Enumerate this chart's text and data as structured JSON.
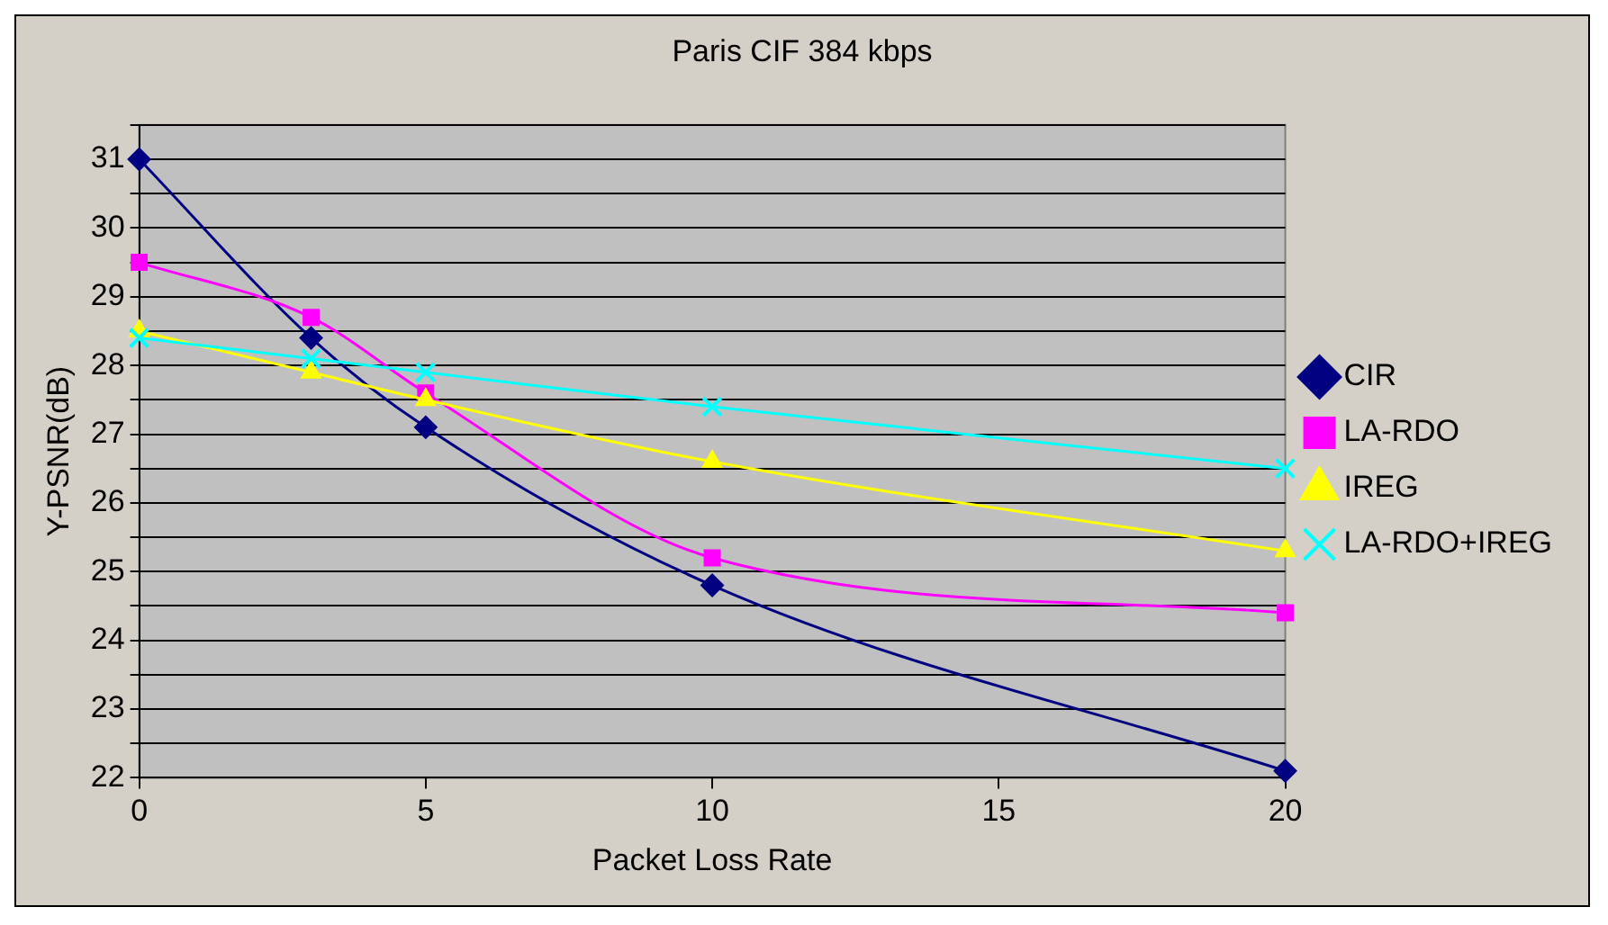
{
  "chart_data": {
    "type": "line",
    "title": "Paris CIF 384 kbps",
    "xlabel": "Packet Loss Rate",
    "ylabel": "Y-PSNR(dB)",
    "x": [
      0,
      3,
      5,
      10,
      20
    ],
    "series": [
      {
        "name": "CIR",
        "color": "#000080",
        "marker": "diamond",
        "values": [
          31,
          28.4,
          27.1,
          24.8,
          22.1
        ]
      },
      {
        "name": "LA-RDO",
        "color": "#ff00ff",
        "marker": "square",
        "values": [
          29.5,
          28.7,
          27.6,
          25.2,
          24.4
        ]
      },
      {
        "name": "IREG",
        "color": "#ffff00",
        "marker": "triangle",
        "values": [
          28.5,
          27.9,
          27.5,
          26.6,
          25.3
        ]
      },
      {
        "name": "LA-RDO+IREG",
        "color": "#00ffff",
        "marker": "cross",
        "values": [
          28.4,
          28.1,
          27.9,
          27.4,
          26.5
        ]
      }
    ],
    "xlim": [
      0,
      20
    ],
    "xticks": [
      0,
      5,
      10,
      15,
      20
    ],
    "ylim": [
      22,
      31.5
    ],
    "yticks": [
      22,
      {
        "value": 22.5,
        "label": null
      },
      23,
      {
        "value": 23.5,
        "label": null
      },
      24,
      {
        "value": 24.5,
        "label": null
      },
      25,
      {
        "value": 25.5,
        "label": null
      },
      26,
      {
        "value": 26.5,
        "label": null
      },
      27,
      {
        "value": 27.5,
        "label": null
      },
      28,
      {
        "value": 28.5,
        "label": null
      },
      29,
      {
        "value": 29.5,
        "label": null
      },
      30,
      {
        "value": 30.5,
        "label": null
      },
      31,
      {
        "value": 31.5,
        "label": null
      }
    ],
    "grid": "y",
    "legend": "right",
    "line_style": "solid"
  }
}
